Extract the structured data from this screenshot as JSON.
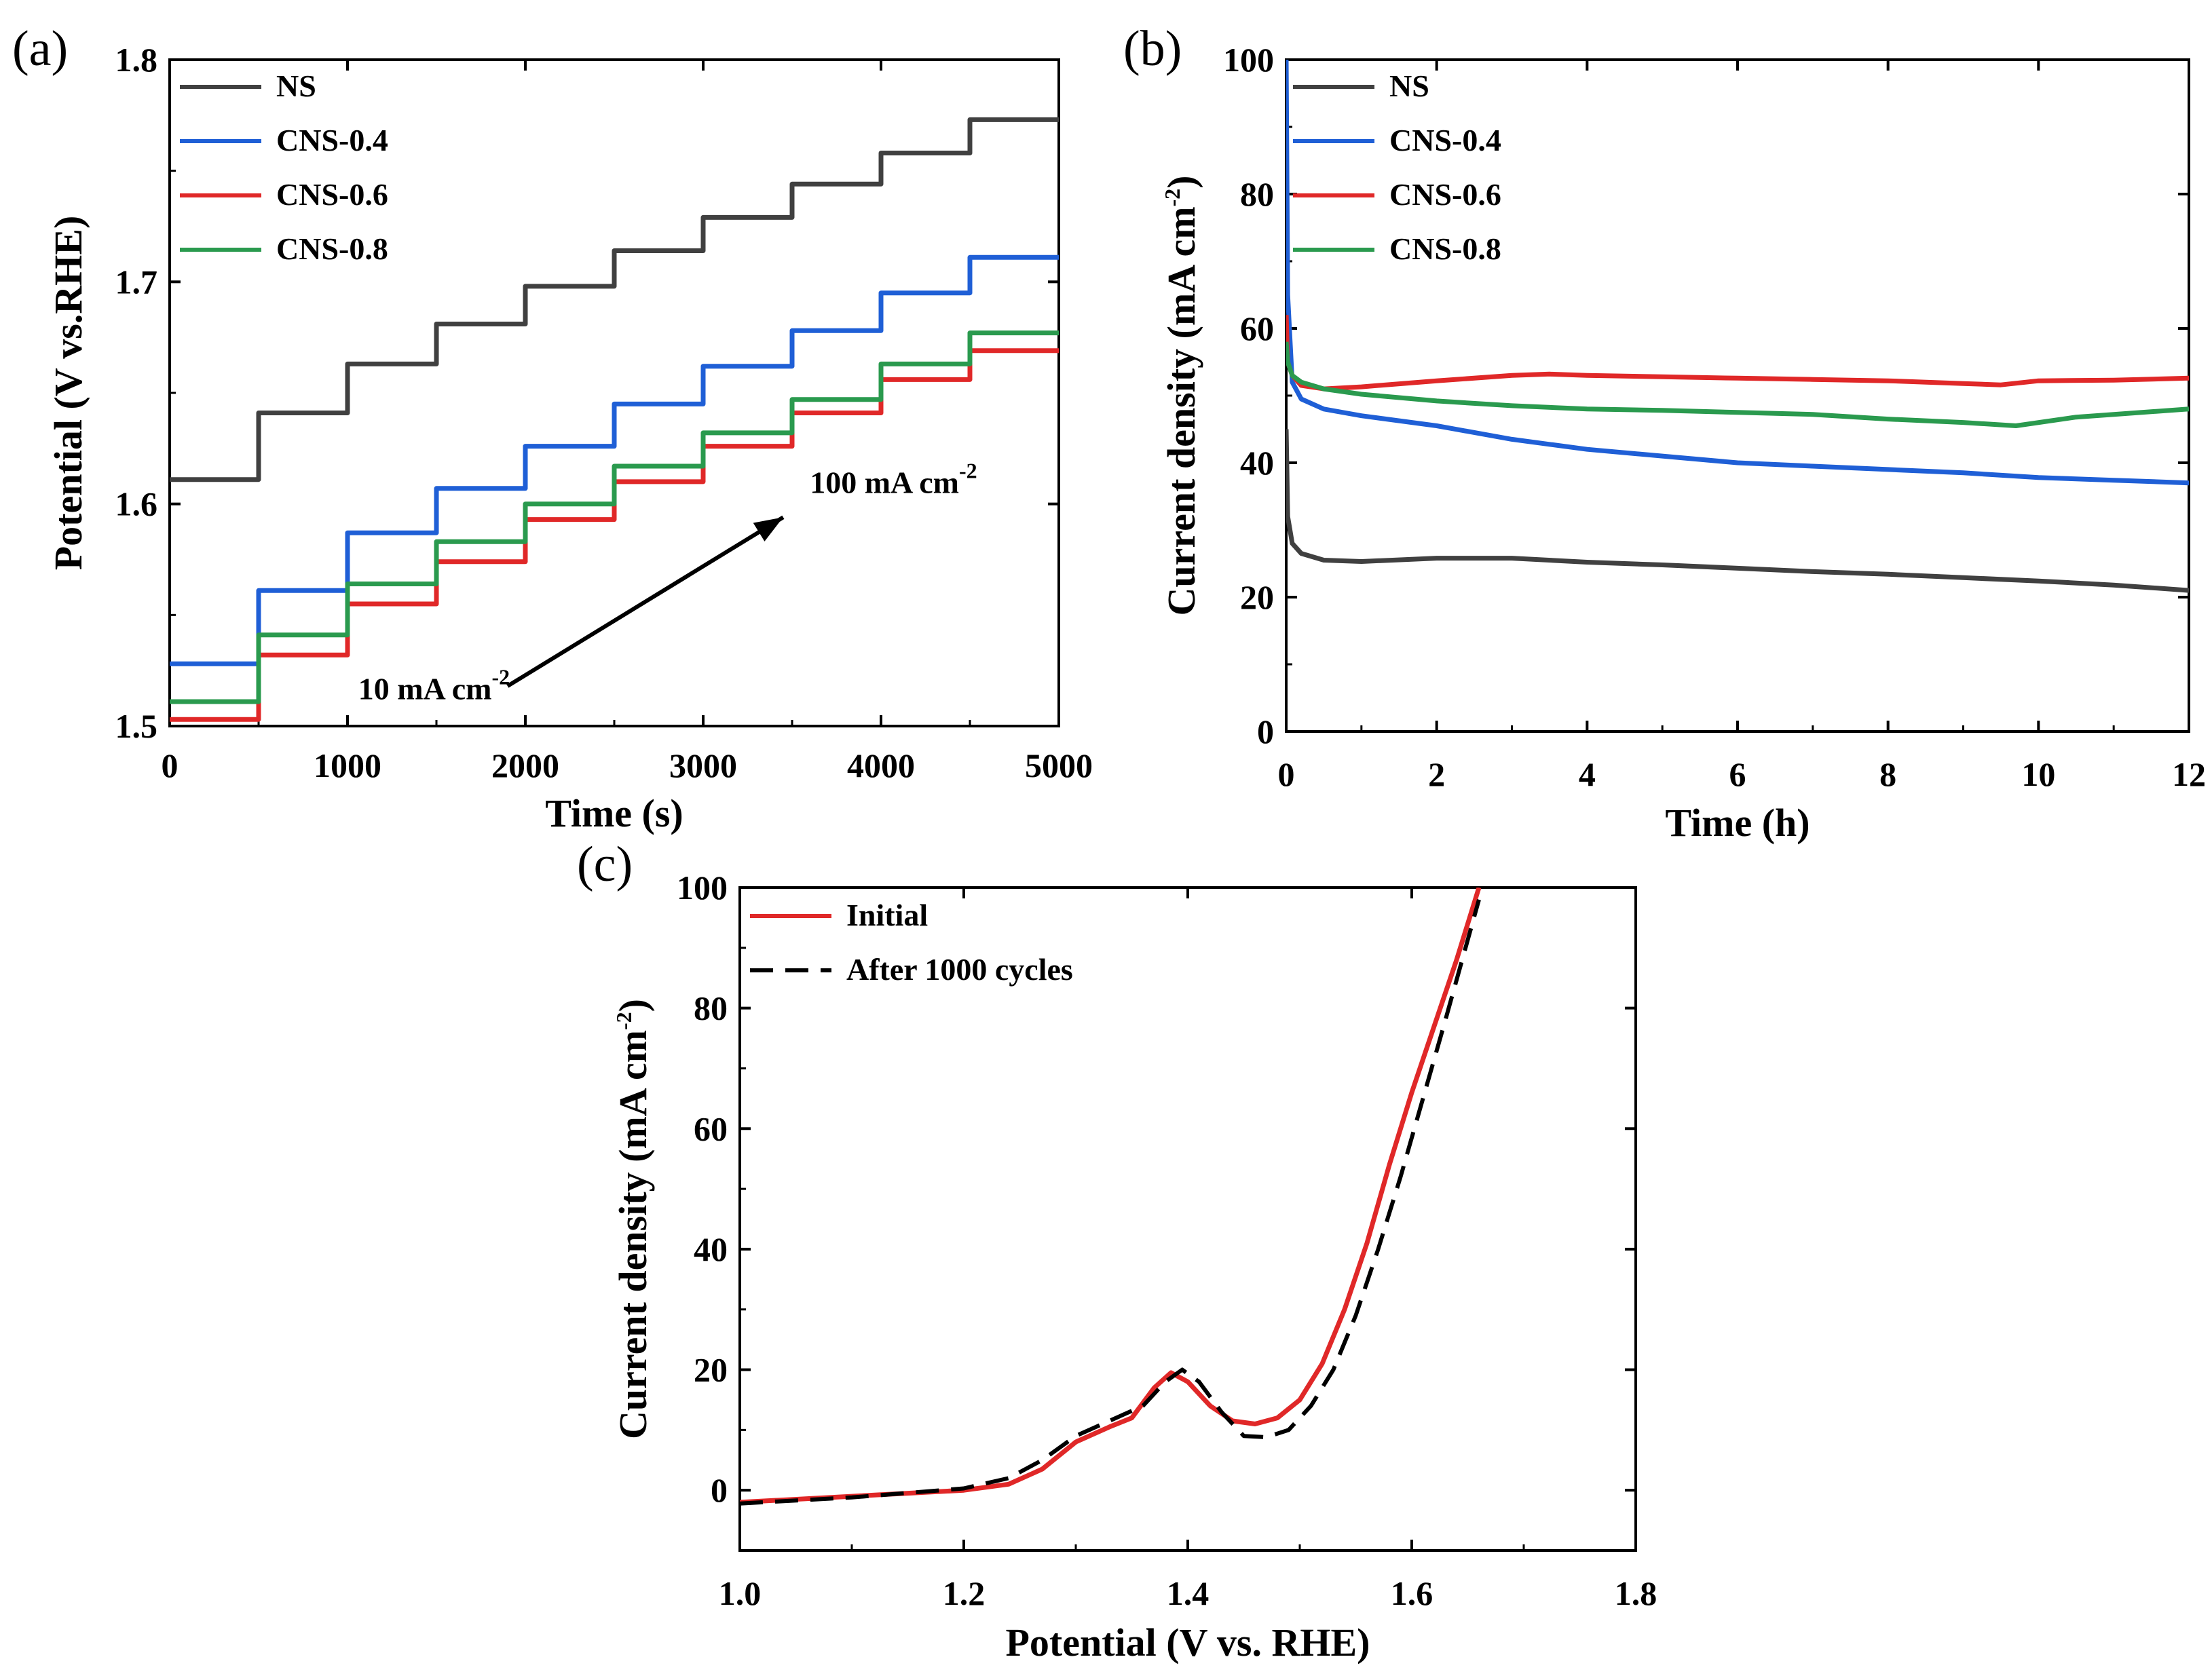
{
  "figure": {
    "panels": [
      "(a)",
      "(b)",
      "(c)"
    ]
  },
  "chart_data": [
    {
      "id": "a",
      "type": "line",
      "panel_label": "(a)",
      "xlabel": "Time (s)",
      "ylabel": "Potential (V vs.RHE)",
      "xlim": [
        0,
        5000
      ],
      "ylim": [
        1.5,
        1.8
      ],
      "xticks": [
        0,
        1000,
        2000,
        3000,
        4000,
        5000
      ],
      "xtick_labels": [
        "0",
        "1000",
        "2000",
        "3000",
        "4000",
        "5000"
      ],
      "yticks": [
        1.5,
        1.6,
        1.7,
        1.8
      ],
      "ytick_labels": [
        "1.5",
        "1.6",
        "1.7",
        "1.8"
      ],
      "legend_position": "top-left",
      "step_x": [
        0,
        500,
        1000,
        1500,
        2000,
        2500,
        3000,
        3500,
        4000,
        4500,
        5000
      ],
      "series": [
        {
          "name": "NS",
          "color": "#404040",
          "values": [
            1.611,
            1.641,
            1.663,
            1.681,
            1.698,
            1.714,
            1.729,
            1.744,
            1.758,
            1.773
          ]
        },
        {
          "name": "CNS-0.4",
          "color": "#1f5fd6",
          "values": [
            1.528,
            1.561,
            1.587,
            1.607,
            1.626,
            1.645,
            1.662,
            1.678,
            1.695,
            1.711
          ]
        },
        {
          "name": "CNS-0.6",
          "color": "#e02828",
          "values": [
            1.503,
            1.532,
            1.555,
            1.574,
            1.593,
            1.61,
            1.626,
            1.641,
            1.656,
            1.669
          ]
        },
        {
          "name": "CNS-0.8",
          "color": "#2a9a4e",
          "values": [
            1.511,
            1.541,
            1.564,
            1.583,
            1.6,
            1.617,
            1.632,
            1.647,
            1.663,
            1.677
          ]
        }
      ],
      "annotations": [
        {
          "text": "10 mA cm",
          "sup": "-2"
        },
        {
          "text": "100 mA cm",
          "sup": "-2"
        }
      ],
      "arrow": {
        "from": [
          1900,
          1.518
        ],
        "to": [
          3450,
          1.594
        ]
      }
    },
    {
      "id": "b",
      "type": "line",
      "panel_label": "(b)",
      "xlabel": "Time (h)",
      "ylabel": "Current density (mA cm",
      "ylabel_sup": "-2",
      "ylabel_close": ")",
      "xlim": [
        0,
        12
      ],
      "ylim": [
        0,
        100
      ],
      "xticks": [
        0,
        2,
        4,
        6,
        8,
        10,
        12
      ],
      "xtick_labels": [
        "0",
        "2",
        "4",
        "6",
        "8",
        "10",
        "12"
      ],
      "yticks": [
        0,
        20,
        40,
        60,
        80,
        100
      ],
      "ytick_labels": [
        "0",
        "20",
        "40",
        "60",
        "80",
        "100"
      ],
      "legend_position": "top-left",
      "series": [
        {
          "name": "NS",
          "color": "#404040",
          "x": [
            0,
            0.02,
            0.08,
            0.2,
            0.5,
            1,
            2,
            3,
            4,
            5,
            6,
            7,
            8,
            9,
            10,
            11,
            12
          ],
          "y": [
            45,
            32,
            28,
            26.5,
            25.5,
            25.3,
            25.8,
            25.8,
            25.2,
            24.8,
            24.3,
            23.8,
            23.4,
            22.9,
            22.4,
            21.8,
            21
          ]
        },
        {
          "name": "CNS-0.4",
          "color": "#1f5fd6",
          "x": [
            0,
            0.02,
            0.08,
            0.2,
            0.5,
            1,
            2,
            3,
            4,
            5,
            6,
            7,
            8,
            9,
            10,
            11,
            12
          ],
          "y": [
            100,
            65,
            52,
            49.5,
            48,
            47,
            45.5,
            43.5,
            42,
            41,
            40,
            39.5,
            39,
            38.5,
            37.8,
            37.4,
            37
          ]
        },
        {
          "name": "CNS-0.6",
          "color": "#e02828",
          "x": [
            0,
            0.02,
            0.08,
            0.2,
            0.5,
            1,
            2,
            3,
            3.5,
            4,
            5,
            6,
            7,
            8,
            9,
            9.5,
            10,
            11,
            12
          ],
          "y": [
            62,
            55,
            53,
            51.5,
            51,
            51.3,
            52.2,
            53,
            53.2,
            53,
            52.8,
            52.6,
            52.4,
            52.2,
            51.8,
            51.6,
            52.2,
            52.3,
            52.6
          ]
        },
        {
          "name": "CNS-0.8",
          "color": "#2a9a4e",
          "x": [
            0,
            0.02,
            0.08,
            0.2,
            0.5,
            1,
            2,
            3,
            4,
            5,
            6,
            7,
            8,
            9,
            9.7,
            10.5,
            11,
            12
          ],
          "y": [
            58,
            55,
            53,
            52,
            51,
            50.2,
            49.2,
            48.5,
            48,
            47.8,
            47.5,
            47.2,
            46.5,
            46,
            45.5,
            46.8,
            47.2,
            48
          ]
        }
      ]
    },
    {
      "id": "c",
      "type": "line",
      "panel_label": "(c)",
      "xlabel": "Potential (V vs. RHE)",
      "ylabel": "Current density (mA cm",
      "ylabel_sup": "-2",
      "ylabel_close": ")",
      "xlim": [
        1.0,
        1.8
      ],
      "ylim": [
        -10,
        100
      ],
      "xticks": [
        1.0,
        1.2,
        1.4,
        1.6,
        1.8
      ],
      "xtick_labels": [
        "1.0",
        "1.2",
        "1.4",
        "1.6",
        "1.8"
      ],
      "yticks": [
        0,
        20,
        40,
        60,
        80,
        100
      ],
      "ytick_labels": [
        "0",
        "20",
        "40",
        "60",
        "80",
        "100"
      ],
      "legend_position": "top-left",
      "series": [
        {
          "name": "Initial",
          "color": "#e02828",
          "dash": false,
          "x": [
            1.0,
            1.1,
            1.2,
            1.24,
            1.27,
            1.3,
            1.33,
            1.35,
            1.37,
            1.385,
            1.4,
            1.42,
            1.44,
            1.46,
            1.48,
            1.5,
            1.52,
            1.54,
            1.56,
            1.58,
            1.6,
            1.62,
            1.64,
            1.66
          ],
          "y": [
            -2,
            -1,
            0,
            1,
            3.5,
            8,
            10.5,
            12,
            17,
            19.5,
            18,
            14,
            11.5,
            11,
            12,
            15,
            21,
            30,
            41,
            54,
            66,
            77,
            88,
            100
          ]
        },
        {
          "name": "After 1000 cycles",
          "color": "#000000",
          "dash": true,
          "x": [
            1.0,
            1.1,
            1.2,
            1.24,
            1.27,
            1.3,
            1.33,
            1.36,
            1.38,
            1.395,
            1.41,
            1.43,
            1.45,
            1.47,
            1.49,
            1.51,
            1.53,
            1.55,
            1.57,
            1.59,
            1.61,
            1.63,
            1.66
          ],
          "y": [
            -2.2,
            -1.2,
            0.3,
            2,
            5,
            9,
            11.5,
            14,
            18,
            20,
            18,
            13,
            9,
            8.8,
            10,
            14,
            20,
            29,
            40,
            52,
            65,
            78,
            98
          ]
        }
      ]
    }
  ]
}
